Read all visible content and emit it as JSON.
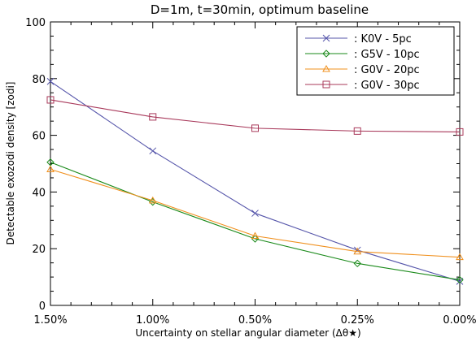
{
  "chart_data": {
    "type": "line",
    "title": "D=1m, t=30min, optimum baseline",
    "xlabel": "Uncertainty on stellar angular diameter (Δθ★)",
    "ylabel": "Detectable exozodi density [zodi]",
    "categories": [
      "1.50%",
      "1.00%",
      "0.50%",
      "0.25%",
      "0.00%"
    ],
    "ylim": [
      0,
      100
    ],
    "yticks": [
      "0",
      "20",
      "40",
      "60",
      "80",
      "100"
    ],
    "grid": false,
    "legend_position": "top-right",
    "series": [
      {
        "name": ": K0V - 5pc",
        "values": [
          79,
          54.5,
          32.5,
          19.5,
          8.5
        ],
        "color": "#5555aa",
        "marker": "x"
      },
      {
        "name": ": G5V - 10pc",
        "values": [
          50.5,
          36.5,
          23.5,
          14.8,
          9
        ],
        "color": "#1a8a1a",
        "marker": "diamond"
      },
      {
        "name": ": G0V - 20pc",
        "values": [
          48,
          37,
          24.5,
          19,
          17
        ],
        "color": "#f0901e",
        "marker": "triangle"
      },
      {
        "name": ": G0V - 30pc",
        "values": [
          72.5,
          66.5,
          62.5,
          61.5,
          61.2
        ],
        "color": "#a8385a",
        "marker": "square"
      }
    ]
  }
}
